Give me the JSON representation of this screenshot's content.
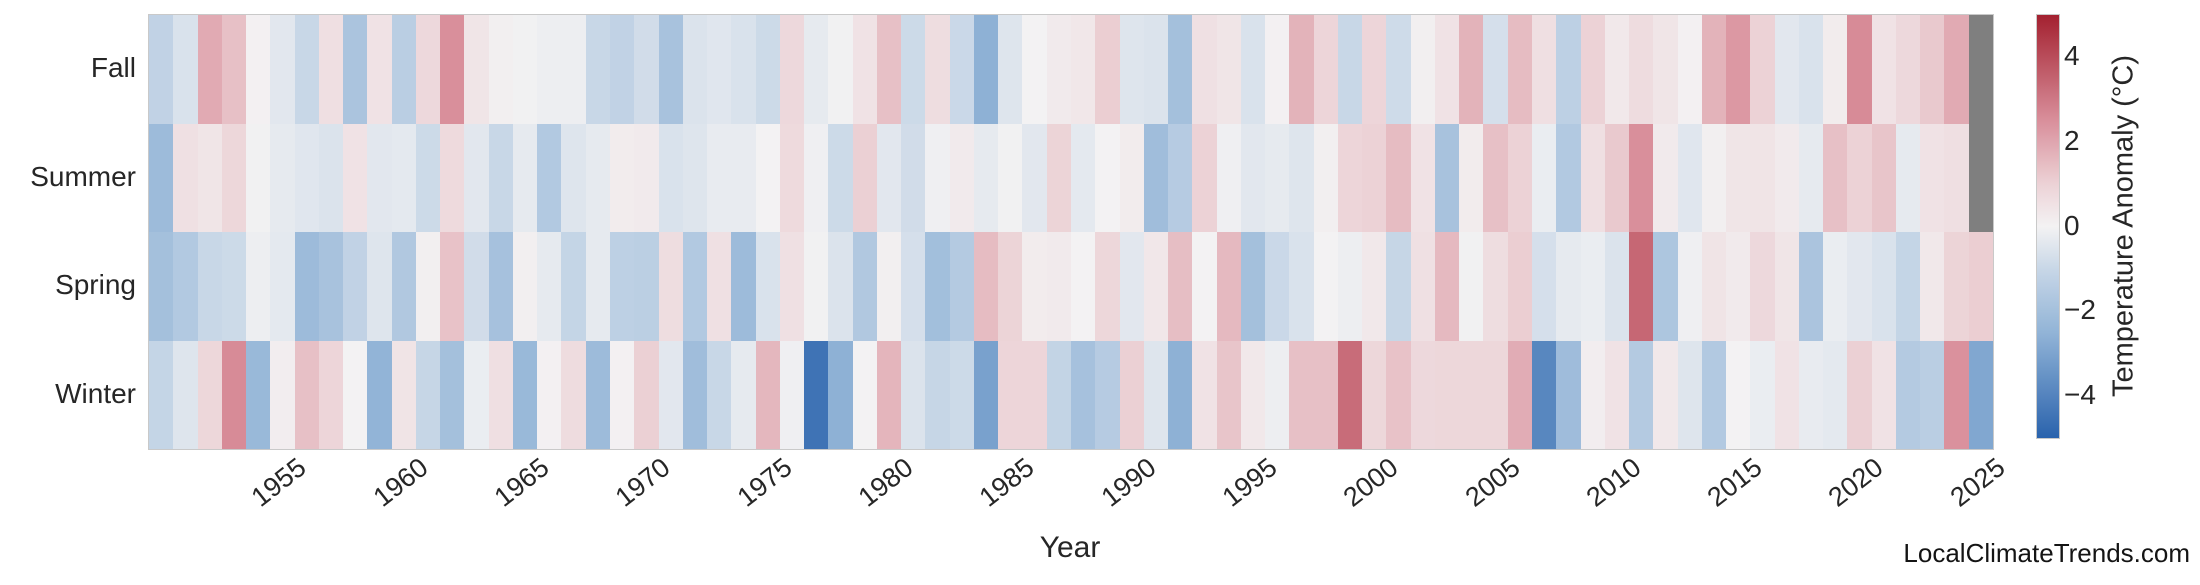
{
  "figure": {
    "x_axis_title": "Year",
    "watermark": "LocalClimateTrends.com"
  },
  "y_axis": {
    "labels": [
      "Fall",
      "Summer",
      "Spring",
      "Winter"
    ]
  },
  "x_axis": {
    "title": "Year",
    "tick_labels": [
      "1955",
      "1960",
      "1965",
      "1970",
      "1975",
      "1980",
      "1985",
      "1990",
      "1995",
      "2000",
      "2005",
      "2010",
      "2015",
      "2020",
      "2025"
    ]
  },
  "colorbar": {
    "title": "Temperature Anomaly (°C)",
    "tick_labels": [
      "4",
      "2",
      "0",
      "−2",
      "−4"
    ],
    "tick_values": [
      4,
      2,
      0,
      -2,
      -4
    ],
    "vmin": -5,
    "vmax": 5
  },
  "colors": {
    "background": "#ffffff",
    "text": "#262626",
    "frame": "#c9c9c9",
    "nan_cell": "#7f7f7f",
    "cmap_neg_max": "#2a63ad",
    "cmap_mid": "#f3f2f3",
    "cmap_pos_max": "#a32130"
  },
  "chart_data": {
    "type": "heatmap",
    "title": "",
    "xlabel": "Year",
    "colorbar_label": "Temperature Anomaly (°C)",
    "x": [
      1950,
      1951,
      1952,
      1953,
      1954,
      1955,
      1956,
      1957,
      1958,
      1959,
      1960,
      1961,
      1962,
      1963,
      1964,
      1965,
      1966,
      1967,
      1968,
      1969,
      1970,
      1971,
      1972,
      1973,
      1974,
      1975,
      1976,
      1977,
      1978,
      1979,
      1980,
      1981,
      1982,
      1983,
      1984,
      1985,
      1986,
      1987,
      1988,
      1989,
      1990,
      1991,
      1992,
      1993,
      1994,
      1995,
      1996,
      1997,
      1998,
      1999,
      2000,
      2001,
      2002,
      2003,
      2004,
      2005,
      2006,
      2007,
      2008,
      2009,
      2010,
      2011,
      2012,
      2013,
      2014,
      2015,
      2016,
      2017,
      2018,
      2019,
      2020,
      2021,
      2022,
      2023,
      2024,
      2025
    ],
    "rows": [
      "Fall",
      "Summer",
      "Spring",
      "Winter"
    ],
    "value_range": [
      -5,
      5
    ],
    "series": [
      {
        "name": "Fall",
        "values": [
          -1.2,
          -0.6,
          1.9,
          1.4,
          0.05,
          -0.4,
          -1.0,
          0.6,
          -1.8,
          0.5,
          -1.4,
          0.8,
          2.5,
          0.4,
          0.1,
          -0.05,
          -0.15,
          -0.15,
          -1.0,
          -1.2,
          -0.8,
          -1.9,
          -0.55,
          -0.45,
          -0.6,
          -0.9,
          0.8,
          -0.3,
          -0.05,
          0.5,
          1.4,
          -0.9,
          0.65,
          -0.95,
          -2.6,
          -0.5,
          0.0,
          0.25,
          0.35,
          1.1,
          -0.5,
          -0.55,
          -2.0,
          0.55,
          0.4,
          -0.6,
          0.05,
          1.7,
          0.9,
          -1.0,
          0.9,
          -0.85,
          0.1,
          0.5,
          1.7,
          -0.7,
          1.5,
          0.6,
          -1.3,
          1.0,
          0.3,
          0.7,
          0.4,
          0.05,
          1.7,
          2.3,
          1.0,
          -0.4,
          -0.6,
          0.2,
          2.6,
          0.5,
          0.8,
          1.2,
          1.9,
          null
        ]
      },
      {
        "name": "Summer",
        "values": [
          -2.2,
          0.55,
          0.4,
          0.85,
          -0.05,
          -0.3,
          -0.45,
          -0.55,
          0.5,
          -0.4,
          -0.35,
          -0.9,
          0.75,
          -0.4,
          -1.0,
          -0.3,
          -1.6,
          -0.5,
          -0.3,
          0.2,
          0.25,
          -0.6,
          -0.5,
          -0.25,
          -0.25,
          0.0,
          0.75,
          -0.1,
          -0.9,
          1.05,
          -0.4,
          -0.8,
          -0.1,
          0.25,
          -0.3,
          -0.05,
          -0.4,
          0.95,
          -0.35,
          0.0,
          0.2,
          -2.1,
          -1.5,
          1.0,
          -0.1,
          -0.4,
          -0.3,
          -0.5,
          0.1,
          0.9,
          1.0,
          1.5,
          0.5,
          -1.9,
          0.2,
          1.4,
          1.0,
          -0.2,
          -1.6,
          0.6,
          1.2,
          2.5,
          0.25,
          -0.45,
          0.1,
          0.4,
          0.45,
          0.25,
          -0.3,
          1.4,
          1.0,
          1.3,
          -0.3,
          0.5,
          0.6,
          null
        ]
      },
      {
        "name": "Spring",
        "values": [
          -2.0,
          -1.6,
          -1.0,
          -0.9,
          -0.15,
          -0.35,
          -2.2,
          -1.9,
          -1.2,
          -0.5,
          -1.65,
          0.1,
          1.35,
          -0.8,
          -1.95,
          0.1,
          -0.3,
          -1.1,
          -0.3,
          -1.3,
          -1.35,
          0.65,
          -1.6,
          0.55,
          -2.2,
          -0.6,
          0.55,
          -0.05,
          -0.55,
          -1.65,
          0.1,
          -0.7,
          -2.05,
          -1.55,
          1.5,
          0.95,
          0.2,
          0.25,
          0.0,
          0.85,
          -0.4,
          0.35,
          1.45,
          0.0,
          1.55,
          -2.0,
          -0.95,
          -0.6,
          0.0,
          -0.15,
          0.3,
          -1.05,
          0.55,
          1.55,
          -0.05,
          0.65,
          1.1,
          -0.7,
          -0.3,
          -0.2,
          -0.55,
          3.4,
          -1.75,
          -0.1,
          0.45,
          0.25,
          0.8,
          0.4,
          -1.8,
          -0.2,
          -0.4,
          -0.6,
          -1.1,
          0.3,
          0.95,
          1.1
        ]
      },
      {
        "name": "Winter",
        "values": [
          -1.1,
          -0.5,
          0.85,
          2.6,
          -2.3,
          0.15,
          1.4,
          0.9,
          0.0,
          -2.5,
          0.45,
          -1.05,
          -2.0,
          -0.2,
          0.6,
          -2.3,
          0.05,
          0.7,
          -2.2,
          0.05,
          1.05,
          -0.4,
          -2.1,
          -1.0,
          -0.3,
          1.6,
          -0.1,
          -4.5,
          -2.6,
          0.0,
          1.65,
          -0.55,
          -1.05,
          -0.9,
          -3.1,
          0.9,
          0.9,
          -1.15,
          -1.95,
          -1.5,
          1.05,
          -0.5,
          -2.6,
          0.5,
          1.3,
          0.3,
          -0.15,
          1.4,
          1.4,
          3.3,
          0.85,
          1.35,
          0.8,
          0.85,
          0.85,
          0.85,
          1.85,
          -3.9,
          -2.15,
          0.15,
          0.5,
          -1.55,
          0.3,
          -0.5,
          -1.6,
          0.0,
          -0.2,
          0.5,
          -0.25,
          -0.35,
          1.05,
          0.5,
          -1.55,
          -1.4,
          2.45,
          -2.9
        ]
      }
    ]
  }
}
